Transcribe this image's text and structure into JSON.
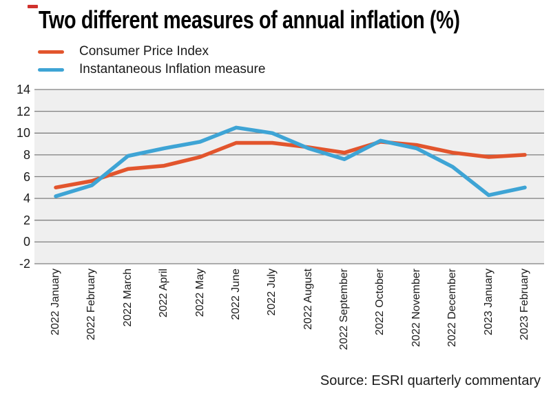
{
  "accent_dash_color": "#d0312d",
  "source": "Source: ESRI quarterly commentary",
  "chart_data": {
    "type": "line",
    "title": "Two different measures of annual inflation (%)",
    "categories": [
      "2022 January",
      "2022 February",
      "2022 March",
      "2022 April",
      "2022 May",
      "2022 June",
      "2022 July",
      "2022 August",
      "2022 September",
      "2022 October",
      "2022 November",
      "2022 December",
      "2023 January",
      "2023 February"
    ],
    "series": [
      {
        "name": "Consumer Price Index",
        "color": "#e2552d",
        "values": [
          5.0,
          5.6,
          6.7,
          7.0,
          7.8,
          9.1,
          9.1,
          8.7,
          8.2,
          9.2,
          8.9,
          8.2,
          7.8,
          8.0
        ]
      },
      {
        "name": "Instantaneous Inflation measure",
        "color": "#3ea4d5",
        "values": [
          4.2,
          5.2,
          7.9,
          8.6,
          9.2,
          10.5,
          10.0,
          8.6,
          7.6,
          9.3,
          8.6,
          6.9,
          4.3,
          5.0
        ]
      }
    ],
    "xlabel": "",
    "ylabel": "",
    "ylim": [
      -2,
      14
    ],
    "yticks": [
      14,
      12,
      10,
      8,
      6,
      4,
      2,
      0,
      -2
    ],
    "grid": "horizontal",
    "legend_position": "top-left",
    "plot_bg": "#efefef",
    "grid_color": "#7f7f7f",
    "axis_text_color": "#1a1a1a"
  }
}
